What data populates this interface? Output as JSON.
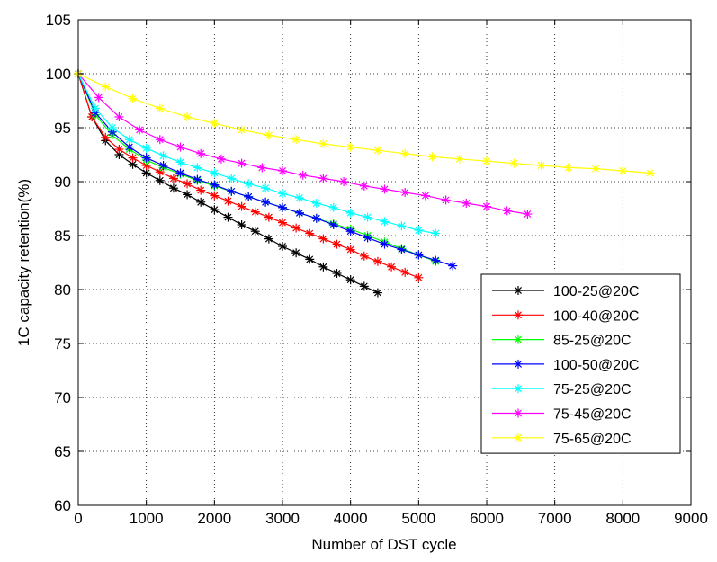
{
  "chart_data": {
    "type": "line",
    "title": "",
    "xlabel": "Number of DST cycle",
    "ylabel": "1C capacity retention(%)",
    "xlim": [
      0,
      9000
    ],
    "ylim": [
      60,
      105
    ],
    "xticks": [
      0,
      1000,
      2000,
      3000,
      4000,
      5000,
      6000,
      7000,
      8000,
      9000
    ],
    "yticks": [
      60,
      65,
      70,
      75,
      80,
      85,
      90,
      95,
      100,
      105
    ],
    "xtick_labels": [
      "0",
      "1000",
      "2000",
      "3000",
      "4000",
      "5000",
      "6000",
      "7000",
      "8000",
      "9000"
    ],
    "ytick_labels": [
      "60",
      "65",
      "70",
      "75",
      "80",
      "85",
      "90",
      "95",
      "100",
      "105"
    ],
    "grid": true,
    "legend_position": "bottom-right",
    "marker": "asterisk",
    "series": [
      {
        "name": "100-25@20C",
        "color": "#000000",
        "x": [
          0,
          200,
          400,
          600,
          800,
          1000,
          1200,
          1400,
          1600,
          1800,
          2000,
          2200,
          2400,
          2600,
          2800,
          3000,
          3200,
          3400,
          3600,
          3800,
          4000,
          4200,
          4400
        ],
        "y": [
          100,
          96.0,
          93.8,
          92.5,
          91.6,
          90.8,
          90.1,
          89.4,
          88.8,
          88.1,
          87.4,
          86.7,
          86.0,
          85.4,
          84.7,
          84.0,
          83.4,
          82.8,
          82.1,
          81.5,
          80.9,
          80.3,
          79.7
        ]
      },
      {
        "name": "100-40@20C",
        "color": "#ff0000",
        "x": [
          0,
          200,
          400,
          600,
          800,
          1000,
          1200,
          1400,
          1600,
          1800,
          2000,
          2200,
          2400,
          2600,
          2800,
          3000,
          3200,
          3400,
          3600,
          3800,
          4000,
          4200,
          4400,
          4600,
          4800,
          5000
        ],
        "y": [
          100,
          96.0,
          94.1,
          93.0,
          92.2,
          91.5,
          90.9,
          90.3,
          89.8,
          89.2,
          88.7,
          88.2,
          87.7,
          87.2,
          86.7,
          86.2,
          85.7,
          85.2,
          84.7,
          84.2,
          83.7,
          83.1,
          82.6,
          82.1,
          81.6,
          81.1
        ]
      },
      {
        "name": "85-25@20C",
        "color": "#00ff00",
        "x": [
          0,
          250,
          500,
          750,
          1000,
          1250,
          1500,
          1750,
          2000,
          2250,
          2500,
          2750,
          3000,
          3250,
          3500,
          3750,
          4000,
          4250,
          4500,
          4750,
          5000,
          5250
        ],
        "y": [
          100,
          96.2,
          94.3,
          93.0,
          92.0,
          91.3,
          90.7,
          90.1,
          89.6,
          89.1,
          88.6,
          88.1,
          87.6,
          87.1,
          86.6,
          86.1,
          85.6,
          85.0,
          84.4,
          83.8,
          83.2,
          82.6
        ]
      },
      {
        "name": "100-50@20C",
        "color": "#0000ff",
        "x": [
          0,
          250,
          500,
          750,
          1000,
          1250,
          1500,
          1750,
          2000,
          2250,
          2500,
          2750,
          3000,
          3250,
          3500,
          3750,
          4000,
          4250,
          4500,
          4750,
          5000,
          5250,
          5500
        ],
        "y": [
          100,
          96.4,
          94.6,
          93.2,
          92.2,
          91.5,
          90.8,
          90.2,
          89.7,
          89.1,
          88.6,
          88.1,
          87.6,
          87.1,
          86.6,
          86.0,
          85.4,
          84.8,
          84.2,
          83.7,
          83.2,
          82.7,
          82.2
        ]
      },
      {
        "name": "75-25@20C",
        "color": "#00ffff",
        "x": [
          0,
          250,
          500,
          750,
          1000,
          1250,
          1500,
          1750,
          2000,
          2250,
          2500,
          2750,
          3000,
          3250,
          3500,
          3750,
          4000,
          4250,
          4500,
          4750,
          5000,
          5250
        ],
        "y": [
          100,
          96.8,
          95.0,
          93.9,
          93.1,
          92.4,
          91.8,
          91.3,
          90.8,
          90.3,
          89.8,
          89.4,
          88.9,
          88.5,
          88.0,
          87.6,
          87.1,
          86.7,
          86.3,
          85.9,
          85.5,
          85.2
        ]
      },
      {
        "name": "75-45@20C",
        "color": "#ff00ff",
        "x": [
          0,
          300,
          600,
          900,
          1200,
          1500,
          1800,
          2100,
          2400,
          2700,
          3000,
          3300,
          3600,
          3900,
          4200,
          4500,
          4800,
          5100,
          5400,
          5700,
          6000,
          6300,
          6600
        ],
        "y": [
          100,
          97.8,
          96.0,
          94.8,
          93.9,
          93.2,
          92.6,
          92.1,
          91.7,
          91.3,
          91.0,
          90.6,
          90.3,
          90.0,
          89.6,
          89.3,
          89.0,
          88.7,
          88.3,
          88.0,
          87.7,
          87.3,
          87.0
        ]
      },
      {
        "name": "75-65@20C",
        "color": "#ffff00",
        "x": [
          0,
          400,
          800,
          1200,
          1600,
          2000,
          2400,
          2800,
          3200,
          3600,
          4000,
          4400,
          4800,
          5200,
          5600,
          6000,
          6400,
          6800,
          7200,
          7600,
          8000,
          8400
        ],
        "y": [
          100,
          98.8,
          97.7,
          96.8,
          96.0,
          95.4,
          94.8,
          94.3,
          93.9,
          93.5,
          93.2,
          92.9,
          92.6,
          92.3,
          92.1,
          91.9,
          91.7,
          91.5,
          91.3,
          91.2,
          91.0,
          90.8
        ]
      }
    ]
  }
}
